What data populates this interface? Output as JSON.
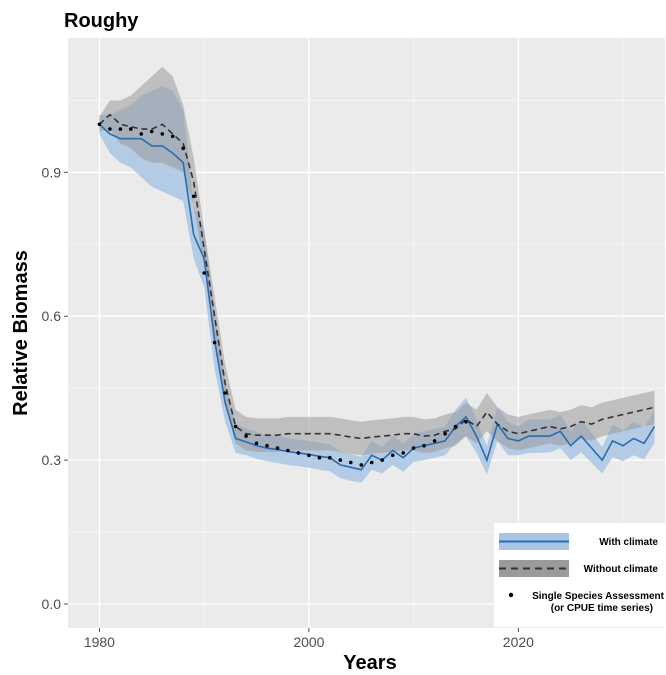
{
  "chart_data": {
    "type": "line",
    "title": "Roughy",
    "xlabel": "Years",
    "ylabel": "Relative Biomass",
    "xlim": [
      1977,
      2034
    ],
    "ylim": [
      -0.05,
      1.18
    ],
    "x_ticks": [
      1980,
      2000,
      2020
    ],
    "x_tick_labels": [
      "1980",
      "2000",
      "2020"
    ],
    "y_ticks": [
      0.0,
      0.3,
      0.6,
      0.9
    ],
    "y_tick_labels": [
      "0.0",
      "0.3",
      "0.6",
      "0.9"
    ],
    "grid": true,
    "legend_position": "bottom-right",
    "colors": {
      "with_climate_line": "#2b6cb0",
      "with_climate_band": "#a9c5e3",
      "without_climate_line": "#333333",
      "without_climate_band": "#9a9a9a",
      "panel_background": "#ebebeb",
      "grid": "#ffffff"
    },
    "series": [
      {
        "name": "With climate",
        "style": "solid-line-with-band",
        "x": [
          1980,
          1981,
          1982,
          1983,
          1984,
          1985,
          1986,
          1987,
          1988,
          1989,
          1990,
          1991,
          1992,
          1993,
          1994,
          1995,
          1996,
          1997,
          1998,
          1999,
          2000,
          2001,
          2002,
          2003,
          2004,
          2005,
          2006,
          2007,
          2008,
          2009,
          2010,
          2011,
          2012,
          2013,
          2014,
          2015,
          2016,
          2017,
          2018,
          2019,
          2020,
          2021,
          2022,
          2023,
          2024,
          2025,
          2026,
          2027,
          2028,
          2029,
          2030,
          2031,
          2032,
          2033
        ],
        "values": [
          1.0,
          0.98,
          0.97,
          0.97,
          0.97,
          0.955,
          0.955,
          0.94,
          0.92,
          0.77,
          0.72,
          0.55,
          0.42,
          0.345,
          0.338,
          0.33,
          0.325,
          0.322,
          0.318,
          0.315,
          0.312,
          0.308,
          0.305,
          0.29,
          0.285,
          0.28,
          0.31,
          0.3,
          0.32,
          0.305,
          0.325,
          0.33,
          0.335,
          0.34,
          0.37,
          0.39,
          0.35,
          0.3,
          0.375,
          0.345,
          0.34,
          0.35,
          0.35,
          0.35,
          0.36,
          0.33,
          0.35,
          0.325,
          0.3,
          0.34,
          0.33,
          0.345,
          0.335,
          0.37
        ],
        "lower": [
          0.98,
          0.94,
          0.92,
          0.91,
          0.89,
          0.87,
          0.86,
          0.85,
          0.84,
          0.72,
          0.66,
          0.49,
          0.38,
          0.315,
          0.31,
          0.303,
          0.298,
          0.294,
          0.29,
          0.287,
          0.284,
          0.28,
          0.277,
          0.262,
          0.257,
          0.253,
          0.28,
          0.272,
          0.29,
          0.276,
          0.296,
          0.3,
          0.305,
          0.31,
          0.335,
          0.35,
          0.315,
          0.27,
          0.34,
          0.31,
          0.31,
          0.315,
          0.315,
          0.316,
          0.325,
          0.3,
          0.316,
          0.294,
          0.272,
          0.306,
          0.298,
          0.31,
          0.302,
          0.335
        ],
        "upper": [
          1.02,
          1.02,
          1.03,
          1.04,
          1.06,
          1.07,
          1.08,
          1.07,
          1.03,
          0.83,
          0.78,
          0.61,
          0.46,
          0.375,
          0.367,
          0.358,
          0.352,
          0.35,
          0.346,
          0.343,
          0.34,
          0.336,
          0.333,
          0.318,
          0.313,
          0.307,
          0.34,
          0.328,
          0.35,
          0.334,
          0.355,
          0.36,
          0.365,
          0.37,
          0.405,
          0.43,
          0.385,
          0.33,
          0.41,
          0.38,
          0.37,
          0.385,
          0.385,
          0.384,
          0.395,
          0.36,
          0.384,
          0.356,
          0.328,
          0.374,
          0.362,
          0.38,
          0.368,
          0.405
        ]
      },
      {
        "name": "Without climate",
        "style": "dashed-line-with-band",
        "x": [
          1980,
          1981,
          1982,
          1983,
          1984,
          1985,
          1986,
          1987,
          1988,
          1989,
          1990,
          1991,
          1992,
          1993,
          1994,
          1995,
          1996,
          1997,
          1998,
          1999,
          2000,
          2001,
          2002,
          2003,
          2004,
          2005,
          2006,
          2007,
          2008,
          2009,
          2010,
          2011,
          2012,
          2013,
          2014,
          2015,
          2016,
          2017,
          2018,
          2019,
          2020,
          2021,
          2022,
          2023,
          2024,
          2025,
          2026,
          2027,
          2028,
          2029,
          2030,
          2031,
          2032,
          2033
        ],
        "values": [
          1.0,
          1.02,
          1.0,
          0.995,
          0.99,
          0.99,
          1.0,
          0.98,
          0.96,
          0.88,
          0.74,
          0.6,
          0.46,
          0.37,
          0.355,
          0.352,
          0.352,
          0.352,
          0.355,
          0.355,
          0.355,
          0.355,
          0.355,
          0.352,
          0.348,
          0.345,
          0.348,
          0.35,
          0.352,
          0.355,
          0.355,
          0.35,
          0.352,
          0.36,
          0.365,
          0.385,
          0.37,
          0.4,
          0.375,
          0.36,
          0.355,
          0.36,
          0.365,
          0.37,
          0.365,
          0.37,
          0.38,
          0.375,
          0.385,
          0.39,
          0.395,
          0.4,
          0.405,
          0.41
        ],
        "lower": [
          0.985,
          0.99,
          0.96,
          0.95,
          0.93,
          0.92,
          0.92,
          0.91,
          0.9,
          0.83,
          0.7,
          0.56,
          0.42,
          0.335,
          0.32,
          0.317,
          0.317,
          0.317,
          0.32,
          0.32,
          0.32,
          0.32,
          0.32,
          0.317,
          0.313,
          0.31,
          0.313,
          0.315,
          0.317,
          0.32,
          0.32,
          0.315,
          0.317,
          0.325,
          0.33,
          0.35,
          0.335,
          0.36,
          0.34,
          0.325,
          0.32,
          0.325,
          0.33,
          0.335,
          0.33,
          0.335,
          0.345,
          0.34,
          0.35,
          0.355,
          0.36,
          0.365,
          0.37,
          0.375
        ],
        "upper": [
          1.015,
          1.05,
          1.05,
          1.06,
          1.08,
          1.1,
          1.12,
          1.1,
          1.04,
          0.93,
          0.78,
          0.64,
          0.5,
          0.405,
          0.39,
          0.387,
          0.387,
          0.387,
          0.39,
          0.39,
          0.39,
          0.39,
          0.39,
          0.387,
          0.383,
          0.38,
          0.383,
          0.385,
          0.387,
          0.39,
          0.39,
          0.385,
          0.387,
          0.395,
          0.4,
          0.42,
          0.405,
          0.44,
          0.41,
          0.395,
          0.39,
          0.395,
          0.4,
          0.405,
          0.4,
          0.405,
          0.415,
          0.41,
          0.42,
          0.425,
          0.43,
          0.435,
          0.44,
          0.445
        ]
      },
      {
        "name": "Single Species Assessment (or CPUE time series)",
        "style": "points",
        "x": [
          1980,
          1981,
          1982,
          1983,
          1984,
          1985,
          1986,
          1987,
          1988,
          1989,
          1990,
          1991,
          1992,
          1993,
          1994,
          1995,
          1996,
          1997,
          1998,
          1999,
          2000,
          2001,
          2002,
          2003,
          2004,
          2005,
          2006,
          2007,
          2008,
          2009,
          2010,
          2011,
          2012,
          2013,
          2014,
          2015
        ],
        "values": [
          1.0,
          0.99,
          0.99,
          0.99,
          0.98,
          0.985,
          0.98,
          0.975,
          0.95,
          0.85,
          0.69,
          0.545,
          0.44,
          0.37,
          0.35,
          0.335,
          0.33,
          0.325,
          0.32,
          0.315,
          0.31,
          0.305,
          0.305,
          0.3,
          0.295,
          0.29,
          0.295,
          0.3,
          0.31,
          0.315,
          0.325,
          0.33,
          0.34,
          0.355,
          0.37,
          0.38
        ]
      }
    ],
    "legend": {
      "items": [
        {
          "label": "With climate"
        },
        {
          "label": "Without climate"
        },
        {
          "label": "Single Species Assessment",
          "label_line2": "(or CPUE time series)"
        }
      ]
    }
  }
}
